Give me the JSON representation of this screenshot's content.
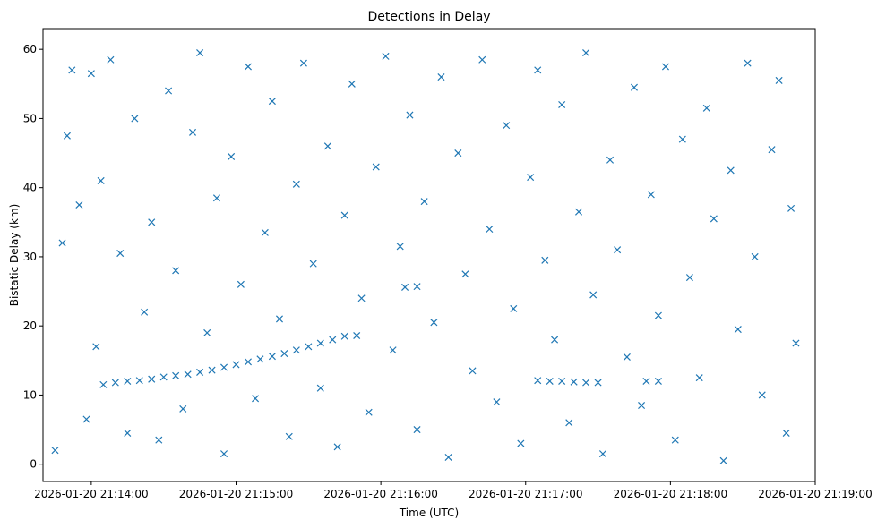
{
  "chart_data": {
    "type": "scatter",
    "title": "Detections in Delay",
    "xlabel": "Time (UTC)",
    "ylabel": "Bistatic Delay (km)",
    "x_ticks": [
      "2026-01-20 21:14:00",
      "2026-01-20 21:15:00",
      "2026-01-20 21:16:00",
      "2026-01-20 21:17:00",
      "2026-01-20 21:18:00",
      "2026-01-20 21:19:00"
    ],
    "xlim": [
      "2026-01-20 21:13:40",
      "2026-01-20 21:19:00"
    ],
    "ylim": [
      -2.5,
      63
    ],
    "y_ticks": [
      0,
      10,
      20,
      30,
      40,
      50,
      60
    ],
    "marker": "x",
    "color": "#1f77b4",
    "grid": false,
    "legend": "none",
    "track_points": [
      [
        "2026-01-20 21:14:05",
        11.5
      ],
      [
        "2026-01-20 21:14:10",
        11.8
      ],
      [
        "2026-01-20 21:14:15",
        12.0
      ],
      [
        "2026-01-20 21:14:20",
        12.1
      ],
      [
        "2026-01-20 21:14:25",
        12.3
      ],
      [
        "2026-01-20 21:14:30",
        12.6
      ],
      [
        "2026-01-20 21:14:35",
        12.8
      ],
      [
        "2026-01-20 21:14:40",
        13.0
      ],
      [
        "2026-01-20 21:14:45",
        13.3
      ],
      [
        "2026-01-20 21:14:50",
        13.6
      ],
      [
        "2026-01-20 21:14:55",
        14.0
      ],
      [
        "2026-01-20 21:15:00",
        14.4
      ],
      [
        "2026-01-20 21:15:05",
        14.8
      ],
      [
        "2026-01-20 21:15:10",
        15.2
      ],
      [
        "2026-01-20 21:15:15",
        15.6
      ],
      [
        "2026-01-20 21:15:20",
        16.0
      ],
      [
        "2026-01-20 21:15:25",
        16.5
      ],
      [
        "2026-01-20 21:15:30",
        17.0
      ],
      [
        "2026-01-20 21:15:35",
        17.5
      ],
      [
        "2026-01-20 21:15:40",
        18.0
      ],
      [
        "2026-01-20 21:15:45",
        18.5
      ],
      [
        "2026-01-20 21:15:50",
        18.6
      ],
      [
        "2026-01-20 21:16:10",
        25.6
      ],
      [
        "2026-01-20 21:16:15",
        25.7
      ],
      [
        "2026-01-20 21:17:05",
        12.1
      ],
      [
        "2026-01-20 21:17:10",
        12.0
      ],
      [
        "2026-01-20 21:17:15",
        12.0
      ],
      [
        "2026-01-20 21:17:20",
        11.9
      ],
      [
        "2026-01-20 21:17:25",
        11.8
      ],
      [
        "2026-01-20 21:17:30",
        11.8
      ],
      [
        "2026-01-20 21:17:50",
        12.0
      ],
      [
        "2026-01-20 21:17:55",
        12.0
      ]
    ],
    "scatter_points": [
      [
        "2026-01-20 21:13:45",
        2.0
      ],
      [
        "2026-01-20 21:13:48",
        32.0
      ],
      [
        "2026-01-20 21:13:50",
        47.5
      ],
      [
        "2026-01-20 21:13:52",
        57.0
      ],
      [
        "2026-01-20 21:13:55",
        37.5
      ],
      [
        "2026-01-20 21:13:58",
        6.5
      ],
      [
        "2026-01-20 21:14:00",
        56.5
      ],
      [
        "2026-01-20 21:14:02",
        17.0
      ],
      [
        "2026-01-20 21:14:04",
        41.0
      ],
      [
        "2026-01-20 21:14:08",
        58.5
      ],
      [
        "2026-01-20 21:14:12",
        30.5
      ],
      [
        "2026-01-20 21:14:15",
        4.5
      ],
      [
        "2026-01-20 21:14:18",
        50.0
      ],
      [
        "2026-01-20 21:14:22",
        22.0
      ],
      [
        "2026-01-20 21:14:25",
        35.0
      ],
      [
        "2026-01-20 21:14:28",
        3.5
      ],
      [
        "2026-01-20 21:14:32",
        54.0
      ],
      [
        "2026-01-20 21:14:35",
        28.0
      ],
      [
        "2026-01-20 21:14:38",
        8.0
      ],
      [
        "2026-01-20 21:14:42",
        48.0
      ],
      [
        "2026-01-20 21:14:45",
        59.5
      ],
      [
        "2026-01-20 21:14:48",
        19.0
      ],
      [
        "2026-01-20 21:14:52",
        38.5
      ],
      [
        "2026-01-20 21:14:55",
        1.5
      ],
      [
        "2026-01-20 21:14:58",
        44.5
      ],
      [
        "2026-01-20 21:15:02",
        26.0
      ],
      [
        "2026-01-20 21:15:05",
        57.5
      ],
      [
        "2026-01-20 21:15:08",
        9.5
      ],
      [
        "2026-01-20 21:15:12",
        33.5
      ],
      [
        "2026-01-20 21:15:15",
        52.5
      ],
      [
        "2026-01-20 21:15:18",
        21.0
      ],
      [
        "2026-01-20 21:15:22",
        4.0
      ],
      [
        "2026-01-20 21:15:25",
        40.5
      ],
      [
        "2026-01-20 21:15:28",
        58.0
      ],
      [
        "2026-01-20 21:15:32",
        29.0
      ],
      [
        "2026-01-20 21:15:35",
        11.0
      ],
      [
        "2026-01-20 21:15:38",
        46.0
      ],
      [
        "2026-01-20 21:15:42",
        2.5
      ],
      [
        "2026-01-20 21:15:45",
        36.0
      ],
      [
        "2026-01-20 21:15:48",
        55.0
      ],
      [
        "2026-01-20 21:15:52",
        24.0
      ],
      [
        "2026-01-20 21:15:55",
        7.5
      ],
      [
        "2026-01-20 21:15:58",
        43.0
      ],
      [
        "2026-01-20 21:16:02",
        59.0
      ],
      [
        "2026-01-20 21:16:05",
        16.5
      ],
      [
        "2026-01-20 21:16:08",
        31.5
      ],
      [
        "2026-01-20 21:16:12",
        50.5
      ],
      [
        "2026-01-20 21:16:15",
        5.0
      ],
      [
        "2026-01-20 21:16:18",
        38.0
      ],
      [
        "2026-01-20 21:16:22",
        20.5
      ],
      [
        "2026-01-20 21:16:25",
        56.0
      ],
      [
        "2026-01-20 21:16:28",
        1.0
      ],
      [
        "2026-01-20 21:16:32",
        45.0
      ],
      [
        "2026-01-20 21:16:35",
        27.5
      ],
      [
        "2026-01-20 21:16:38",
        13.5
      ],
      [
        "2026-01-20 21:16:42",
        58.5
      ],
      [
        "2026-01-20 21:16:45",
        34.0
      ],
      [
        "2026-01-20 21:16:48",
        9.0
      ],
      [
        "2026-01-20 21:16:52",
        49.0
      ],
      [
        "2026-01-20 21:16:55",
        22.5
      ],
      [
        "2026-01-20 21:16:58",
        3.0
      ],
      [
        "2026-01-20 21:17:02",
        41.5
      ],
      [
        "2026-01-20 21:17:05",
        57.0
      ],
      [
        "2026-01-20 21:17:08",
        29.5
      ],
      [
        "2026-01-20 21:17:12",
        18.0
      ],
      [
        "2026-01-20 21:17:15",
        52.0
      ],
      [
        "2026-01-20 21:17:18",
        6.0
      ],
      [
        "2026-01-20 21:17:22",
        36.5
      ],
      [
        "2026-01-20 21:17:25",
        59.5
      ],
      [
        "2026-01-20 21:17:28",
        24.5
      ],
      [
        "2026-01-20 21:17:32",
        1.5
      ],
      [
        "2026-01-20 21:17:35",
        44.0
      ],
      [
        "2026-01-20 21:17:38",
        31.0
      ],
      [
        "2026-01-20 21:17:42",
        15.5
      ],
      [
        "2026-01-20 21:17:45",
        54.5
      ],
      [
        "2026-01-20 21:17:48",
        8.5
      ],
      [
        "2026-01-20 21:17:52",
        39.0
      ],
      [
        "2026-01-20 21:17:55",
        21.5
      ],
      [
        "2026-01-20 21:17:58",
        57.5
      ],
      [
        "2026-01-20 21:18:02",
        3.5
      ],
      [
        "2026-01-20 21:18:05",
        47.0
      ],
      [
        "2026-01-20 21:18:08",
        27.0
      ],
      [
        "2026-01-20 21:18:12",
        12.5
      ],
      [
        "2026-01-20 21:18:15",
        51.5
      ],
      [
        "2026-01-20 21:18:18",
        35.5
      ],
      [
        "2026-01-20 21:18:22",
        0.5
      ],
      [
        "2026-01-20 21:18:25",
        42.5
      ],
      [
        "2026-01-20 21:18:28",
        19.5
      ],
      [
        "2026-01-20 21:18:32",
        58.0
      ],
      [
        "2026-01-20 21:18:35",
        30.0
      ],
      [
        "2026-01-20 21:18:38",
        10.0
      ],
      [
        "2026-01-20 21:18:42",
        45.5
      ],
      [
        "2026-01-20 21:18:45",
        55.5
      ],
      [
        "2026-01-20 21:18:48",
        4.5
      ],
      [
        "2026-01-20 21:18:50",
        37.0
      ],
      [
        "2026-01-20 21:18:52",
        17.5
      ]
    ]
  }
}
